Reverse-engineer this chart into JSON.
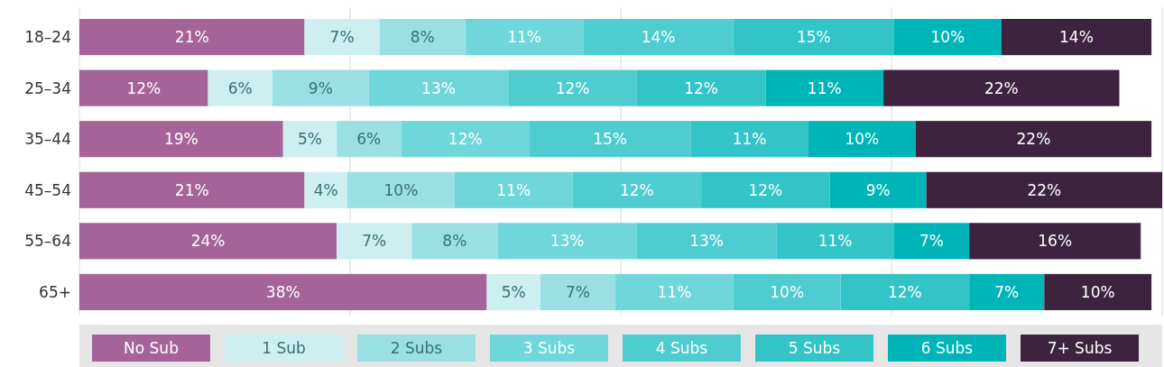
{
  "chart_data": {
    "type": "bar",
    "orientation": "horizontal",
    "stacked": true,
    "grid": "x",
    "legend": "bottom",
    "tick_labels": "y",
    "categories": [
      "18–24",
      "25–34",
      "35–44",
      "45–54",
      "55–64",
      "65+"
    ],
    "series": [
      {
        "name": "No Sub",
        "color": "#a5639a",
        "values": [
          21,
          12,
          19,
          21,
          24,
          38
        ],
        "value_labels": [
          "21%",
          "12%",
          "19%",
          "21%",
          "24%",
          "38%"
        ]
      },
      {
        "name": "1 Sub",
        "color": "#cdeff0",
        "values": [
          7,
          6,
          5,
          4,
          7,
          5
        ],
        "value_labels": [
          "7%",
          "6%",
          "5%",
          "4%",
          "7%",
          "5%"
        ]
      },
      {
        "name": "2 Subs",
        "color": "#9ae0e3",
        "values": [
          8,
          9,
          6,
          10,
          8,
          7
        ],
        "value_labels": [
          "8%",
          "9%",
          "6%",
          "10%",
          "8%",
          "7%"
        ]
      },
      {
        "name": "3 Subs",
        "color": "#6fd6d9",
        "values": [
          11,
          13,
          12,
          11,
          13,
          11
        ],
        "value_labels": [
          "11%",
          "13%",
          "12%",
          "11%",
          "13%",
          "11%"
        ]
      },
      {
        "name": "4 Subs",
        "color": "#4fcccf",
        "values": [
          14,
          12,
          15,
          12,
          13,
          10
        ],
        "value_labels": [
          "14%",
          "12%",
          "15%",
          "12%",
          "13%",
          "10%"
        ]
      },
      {
        "name": "5 Subs",
        "color": "#33c4c7",
        "values": [
          15,
          12,
          11,
          12,
          11,
          12
        ],
        "value_labels": [
          "15%",
          "12%",
          "11%",
          "12%",
          "11%",
          "12%"
        ]
      },
      {
        "name": "6 Subs",
        "color": "#00b5b8",
        "values": [
          10,
          11,
          10,
          9,
          7,
          7
        ],
        "value_labels": [
          "10%",
          "11%",
          "10%",
          "9%",
          "7%",
          "7%"
        ]
      },
      {
        "name": "7+ Subs",
        "color": "#3d2340",
        "values": [
          14,
          22,
          22,
          22,
          16,
          10
        ],
        "value_labels": [
          "14%",
          "22%",
          "22%",
          "22%",
          "16%",
          "10%"
        ]
      }
    ]
  }
}
